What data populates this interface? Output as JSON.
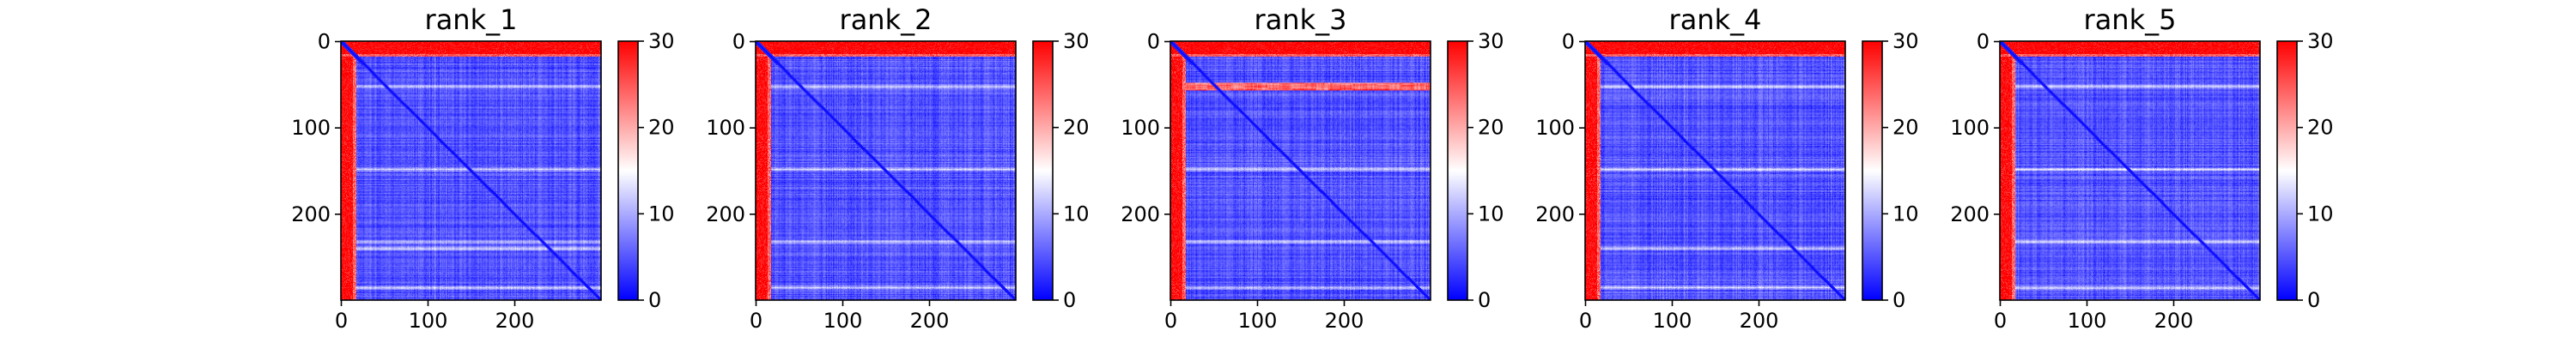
{
  "chart_data": [
    {
      "type": "heatmap",
      "title": "rank_1",
      "size": 300,
      "xlabel": "",
      "ylabel": "",
      "x_ticks": [
        0,
        100,
        200
      ],
      "y_ticks": [
        0,
        100,
        200
      ],
      "xlim": [
        0,
        300
      ],
      "ylim": [
        300,
        0
      ],
      "colorbar": {
        "range": [
          0,
          30
        ],
        "ticks": [
          0,
          10,
          20,
          30
        ],
        "colormap": "bwr"
      },
      "features": {
        "red_rows_end": 18,
        "red_cols_end": 18,
        "bright_rows": [
          52,
          148,
          232,
          240,
          285
        ],
        "band_row": [],
        "diag": true
      }
    },
    {
      "type": "heatmap",
      "title": "rank_2",
      "size": 300,
      "xlabel": "",
      "ylabel": "",
      "x_ticks": [
        0,
        100,
        200
      ],
      "y_ticks": [
        0,
        100,
        200
      ],
      "xlim": [
        0,
        300
      ],
      "ylim": [
        300,
        0
      ],
      "colorbar": {
        "range": [
          0,
          30
        ],
        "ticks": [
          0,
          10,
          20,
          30
        ],
        "colormap": "bwr"
      },
      "features": {
        "red_rows_end": 18,
        "red_cols_end": 18,
        "bright_rows": [
          52,
          148,
          232,
          285
        ],
        "band_row": [],
        "diag": true
      }
    },
    {
      "type": "heatmap",
      "title": "rank_3",
      "size": 300,
      "xlabel": "",
      "ylabel": "",
      "x_ticks": [
        0,
        100,
        200
      ],
      "y_ticks": [
        0,
        100,
        200
      ],
      "xlim": [
        0,
        300
      ],
      "ylim": [
        300,
        0
      ],
      "colorbar": {
        "range": [
          0,
          30
        ],
        "ticks": [
          0,
          10,
          20,
          30
        ],
        "colormap": "bwr"
      },
      "features": {
        "red_rows_end": 18,
        "red_cols_end": 18,
        "bright_rows": [
          148,
          232,
          285
        ],
        "band_row": [
          52
        ],
        "diag": true
      }
    },
    {
      "type": "heatmap",
      "title": "rank_4",
      "size": 300,
      "xlabel": "",
      "ylabel": "",
      "x_ticks": [
        0,
        100,
        200
      ],
      "y_ticks": [
        0,
        100,
        200
      ],
      "xlim": [
        0,
        300
      ],
      "ylim": [
        300,
        0
      ],
      "colorbar": {
        "range": [
          0,
          30
        ],
        "ticks": [
          0,
          10,
          20,
          30
        ],
        "colormap": "bwr"
      },
      "features": {
        "red_rows_end": 18,
        "red_cols_end": 18,
        "bright_rows": [
          52,
          148,
          240,
          285
        ],
        "band_row": [],
        "diag": true
      }
    },
    {
      "type": "heatmap",
      "title": "rank_5",
      "size": 300,
      "xlabel": "",
      "ylabel": "",
      "x_ticks": [
        0,
        100,
        200
      ],
      "y_ticks": [
        0,
        100,
        200
      ],
      "xlim": [
        0,
        300
      ],
      "ylim": [
        300,
        0
      ],
      "colorbar": {
        "range": [
          0,
          30
        ],
        "ticks": [
          0,
          10,
          20,
          30
        ],
        "colormap": "bwr"
      },
      "features": {
        "red_rows_end": 18,
        "red_cols_end": 18,
        "bright_rows": [
          52,
          148,
          232,
          285
        ],
        "band_row": [],
        "diag": true
      }
    }
  ],
  "colors": {
    "low": "#0000ff",
    "mid": "#ffffff",
    "high": "#ff0000"
  }
}
